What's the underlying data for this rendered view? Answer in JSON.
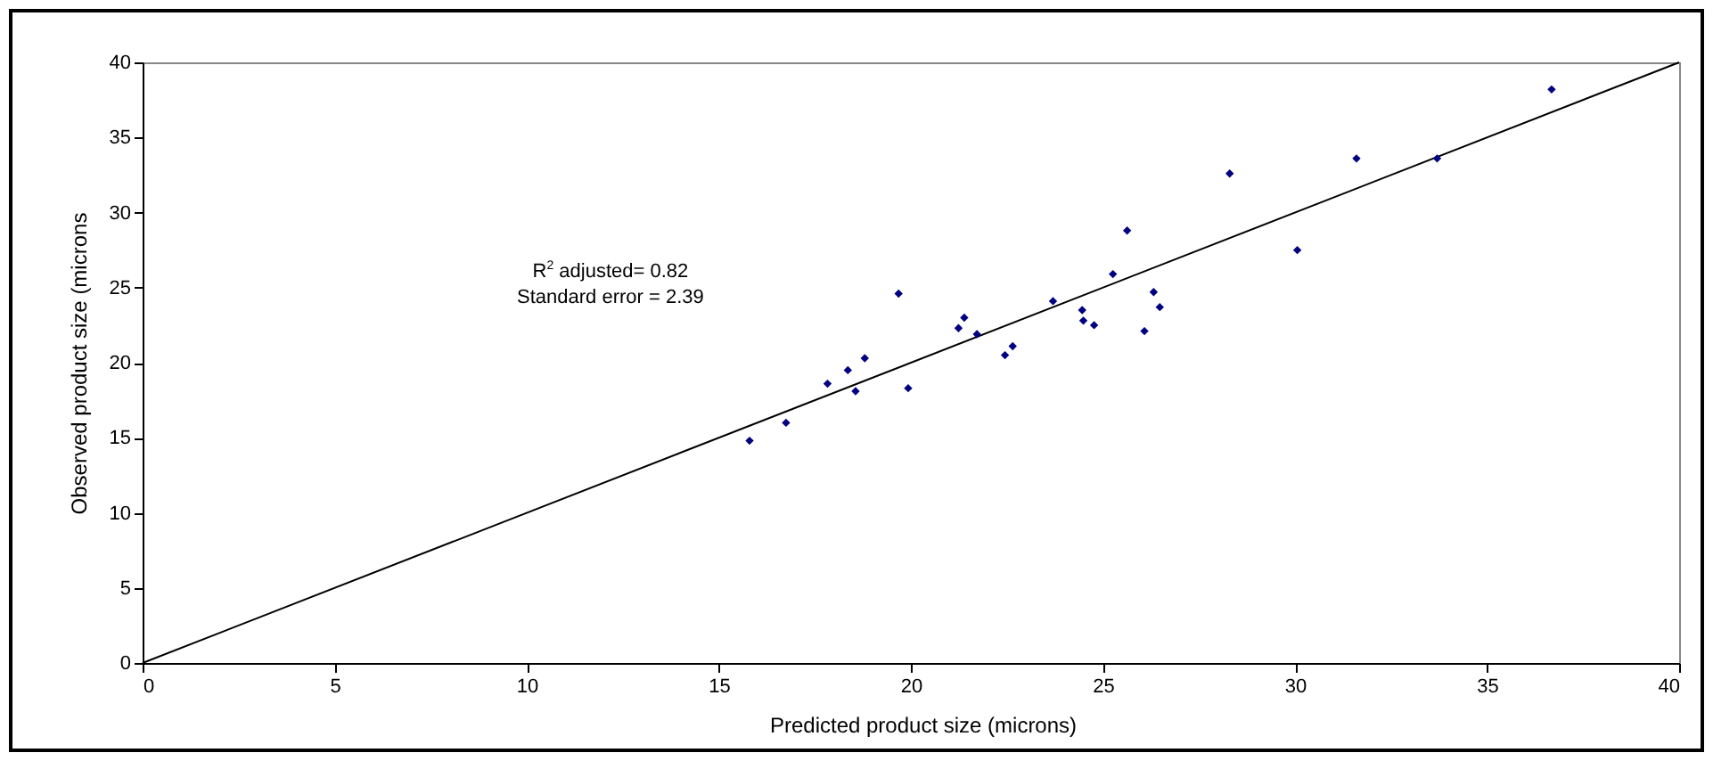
{
  "chart_data": {
    "type": "scatter",
    "xlabel": "Predicted product size (microns)",
    "ylabel": "Observed product size (microns",
    "xlim": [
      0,
      40
    ],
    "ylim": [
      0,
      40
    ],
    "xticks": [
      0,
      5,
      10,
      15,
      20,
      25,
      30,
      35,
      40
    ],
    "yticks": [
      0,
      5,
      10,
      15,
      20,
      25,
      30,
      35,
      40
    ],
    "series": [
      {
        "marker": "diamond",
        "color": "#000080",
        "x": [
          15.8,
          16.75,
          17.83,
          18.36,
          18.56,
          18.8,
          19.68,
          19.93,
          21.24,
          21.39,
          21.72,
          22.45,
          22.65,
          23.7,
          24.46,
          24.49,
          24.77,
          25.26,
          25.63,
          26.08,
          26.32,
          26.48,
          28.3,
          30.06,
          31.6,
          33.7,
          36.68
        ],
        "values": [
          14.8,
          16.0,
          18.6,
          19.5,
          18.1,
          20.3,
          24.6,
          18.3,
          22.3,
          23.0,
          21.9,
          20.5,
          21.1,
          24.1,
          23.5,
          22.8,
          22.5,
          25.9,
          28.8,
          22.1,
          24.7,
          23.7,
          32.6,
          27.5,
          33.6,
          33.6,
          38.2
        ]
      },
      {
        "type": "line",
        "color": "#000000",
        "line_style": "solid",
        "x": [
          0,
          40
        ],
        "values": [
          0,
          40
        ]
      }
    ],
    "annotations": [
      "R$^{2}$ adjusted= 0.82",
      "Standard error = 2.39"
    ]
  }
}
